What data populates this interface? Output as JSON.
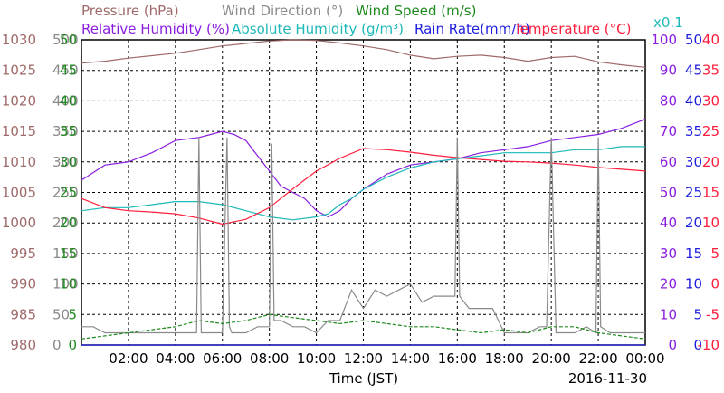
{
  "chart_data": {
    "type": "line",
    "legend_row1": [
      {
        "label": "Pressure (hPa)",
        "color": "#a06a6a"
      },
      {
        "label": "Wind Direction (°)",
        "color": "#8a8a8a"
      },
      {
        "label": "Wind Speed (m/s)",
        "color": "#1e8a1e"
      }
    ],
    "legend_row2": [
      {
        "label": "Relative Humidity (%)",
        "color": "#8a1ee0"
      },
      {
        "label": "Absolute Humidity (g/m³)",
        "color": "#1eb8b8"
      },
      {
        "label": "Rain Rate(mm/h)",
        "color": "#1e1ee0"
      },
      {
        "label": "Temperature (°C)",
        "color": "#ff1e3c"
      }
    ],
    "abs_humidity_scale": "x0.1",
    "xlabel": "Time (JST)",
    "date": "2016-11-30",
    "x_range": [
      0,
      24
    ],
    "x_ticks": [
      "02:00",
      "04:00",
      "06:00",
      "08:00",
      "10:00",
      "12:00",
      "14:00",
      "16:00",
      "18:00",
      "20:00",
      "22:00",
      "00:00"
    ],
    "axes": {
      "pressure": {
        "range": [
          980,
          1030
        ],
        "ticks": [
          "1030",
          "1025",
          "1020",
          "1015",
          "1010",
          "1005",
          "1000",
          "995",
          "990",
          "985",
          "980"
        ],
        "color": "#a06a6a"
      },
      "wind_direction": {
        "range": [
          0,
          500
        ],
        "ticks": [
          "500",
          "450",
          "400",
          "350",
          "300",
          "250",
          "200",
          "150",
          "100",
          "50",
          "0"
        ],
        "color": "#8a8a8a"
      },
      "wind_speed": {
        "range": [
          0,
          50
        ],
        "ticks": [
          "50",
          "45",
          "40",
          "35",
          "30",
          "25",
          "20",
          "15",
          "10",
          "5",
          "0"
        ],
        "color": "#1e8a1e"
      },
      "relative_humidity": {
        "range": [
          0,
          100
        ],
        "ticks": [
          "100",
          "90",
          "80",
          "70",
          "60",
          "50",
          "40",
          "30",
          "20",
          "10",
          "0"
        ],
        "color": "#8a1ee0"
      },
      "rain_rate": {
        "range": [
          0,
          50
        ],
        "ticks": [
          "50",
          "45",
          "40",
          "35",
          "30",
          "25",
          "20",
          "15",
          "10",
          "5",
          "0"
        ],
        "color": "#1e1ee0"
      },
      "temperature": {
        "range": [
          -10,
          40
        ],
        "ticks": [
          "40",
          "35",
          "30",
          "25",
          "20",
          "15",
          "10",
          "5",
          "0",
          "-5",
          "-10"
        ],
        "color": "#ff1e3c"
      }
    },
    "series": [
      {
        "name": "Pressure (hPa)",
        "axis": "pressure",
        "color": "#a06a6a",
        "x": [
          0,
          1,
          2,
          3,
          4,
          5,
          6,
          7,
          8,
          9,
          10,
          11,
          12,
          13,
          14,
          15,
          16,
          17,
          18,
          19,
          20,
          21,
          22,
          23,
          24
        ],
        "y": [
          1026.2,
          1026.5,
          1027,
          1027.4,
          1027.8,
          1028.4,
          1029,
          1029.4,
          1029.8,
          1030,
          1029.9,
          1029.5,
          1029,
          1028.4,
          1027.5,
          1026.9,
          1027.3,
          1027.5,
          1027.1,
          1026.5,
          1027.1,
          1027.3,
          1026.4,
          1025.9,
          1025.5
        ]
      },
      {
        "name": "Relative Humidity (%)",
        "axis": "relative_humidity",
        "color": "#8a1ee0",
        "x": [
          0,
          1,
          2,
          3,
          4,
          5,
          5.5,
          6,
          6.5,
          7,
          7.5,
          8,
          8.5,
          9,
          9.5,
          10,
          10.5,
          11,
          11.5,
          12,
          13,
          14,
          15,
          16,
          17,
          18,
          19,
          20,
          21,
          22,
          23,
          24
        ],
        "y": [
          54,
          59,
          60,
          63,
          67,
          68,
          69,
          70,
          69,
          67,
          62,
          57,
          52,
          50,
          48,
          44,
          42,
          44,
          48,
          51,
          56,
          59,
          60,
          61,
          63,
          64,
          65,
          67,
          68,
          69,
          71,
          74
        ]
      },
      {
        "name": "Absolute Humidity (g/m³)",
        "axis": "relative_humidity",
        "color": "#1eb8b8",
        "x": [
          0,
          1,
          2,
          3,
          4,
          5,
          6,
          7,
          8,
          9,
          10,
          10.5,
          11,
          11.5,
          12,
          13,
          14,
          15,
          16,
          17,
          18,
          19,
          20,
          21,
          22,
          23,
          24
        ],
        "y": [
          44,
          45,
          45,
          46,
          47,
          47,
          46,
          44,
          42,
          41,
          42,
          43,
          46,
          48,
          51,
          55,
          58,
          60,
          61,
          62,
          63,
          63,
          63,
          64,
          64,
          65,
          65
        ]
      },
      {
        "name": "Temperature (°C)",
        "axis": "temperature",
        "color": "#ff1e3c",
        "x": [
          0,
          1,
          2,
          3,
          4,
          5,
          6,
          7,
          8,
          9,
          10,
          11,
          12,
          13,
          14,
          15,
          16,
          17,
          18,
          19,
          20,
          21,
          22,
          23,
          24
        ],
        "y": [
          14,
          12.5,
          12,
          11.8,
          11.5,
          10.8,
          9.8,
          10.6,
          12.5,
          15.6,
          18.5,
          20.6,
          22.2,
          22,
          21.6,
          21.1,
          20.7,
          20.4,
          20.1,
          20,
          19.8,
          19.5,
          19.1,
          18.8,
          18.5
        ]
      },
      {
        "name": "Wind Direction (°)",
        "axis": "wind_direction",
        "color": "#8a8a8a",
        "x": [
          0,
          0.5,
          1,
          1.5,
          2,
          2.5,
          3,
          3.5,
          4,
          4.5,
          4.9,
          5,
          5.1,
          5.5,
          6,
          6.2,
          6.3,
          6.4,
          7,
          7.5,
          8,
          8.1,
          8.2,
          8.5,
          9,
          9.5,
          10,
          10.5,
          11,
          11.5,
          12,
          12.5,
          13,
          13.5,
          14,
          14.5,
          15,
          15.5,
          15.9,
          16,
          16.1,
          16.5,
          17,
          17.5,
          18,
          18.5,
          19,
          19.5,
          19.8,
          20,
          20.2,
          20.5,
          21,
          21.5,
          21.9,
          22,
          22.1,
          22.5,
          23,
          23.5,
          24
        ],
        "y": [
          30,
          30,
          20,
          20,
          20,
          20,
          20,
          20,
          20,
          20,
          20,
          340,
          20,
          20,
          20,
          340,
          30,
          20,
          20,
          30,
          30,
          330,
          40,
          40,
          30,
          30,
          20,
          40,
          40,
          90,
          60,
          90,
          80,
          90,
          100,
          70,
          80,
          80,
          80,
          340,
          80,
          60,
          60,
          60,
          20,
          20,
          20,
          30,
          30,
          340,
          20,
          20,
          20,
          30,
          20,
          340,
          30,
          20,
          20,
          20,
          20
        ]
      },
      {
        "name": "Wind Speed (m/s)",
        "axis": "wind_speed",
        "color": "#1e8a1e",
        "x": [
          0,
          1,
          2,
          3,
          4,
          5,
          6,
          7,
          8,
          9,
          10,
          11,
          12,
          13,
          14,
          15,
          16,
          17,
          18,
          19,
          20,
          21,
          22,
          23,
          24
        ],
        "y": [
          1,
          1.5,
          2,
          2.5,
          3,
          4,
          3.5,
          4,
          5,
          4.5,
          4,
          3.5,
          4,
          3.5,
          3,
          3,
          2.5,
          2,
          2.5,
          2,
          3,
          3,
          2,
          1.5,
          1
        ]
      },
      {
        "name": "Rain Rate(mm/h)",
        "axis": "rain_rate",
        "color": "#1e1ee0",
        "x": [
          0,
          24
        ],
        "y": [
          0,
          0
        ]
      }
    ]
  }
}
